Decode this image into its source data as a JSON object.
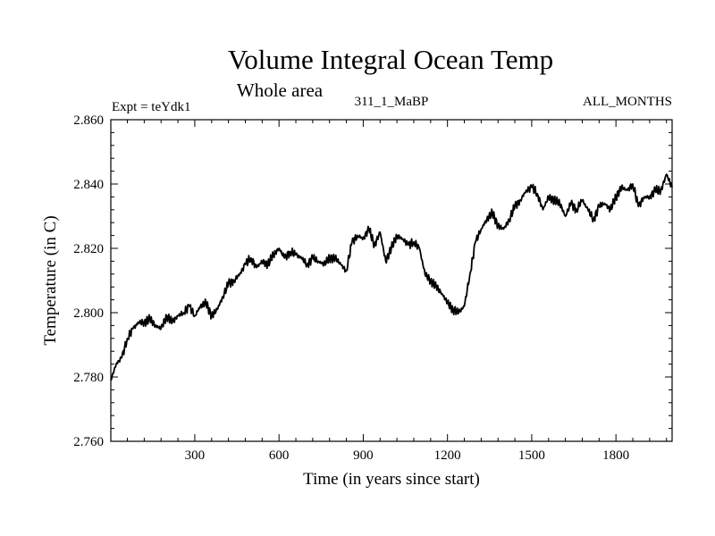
{
  "chart_data": {
    "type": "line",
    "title": "Volume Integral Ocean Temp",
    "subtitle": "Whole area",
    "left_label": "Expt = teYdk1",
    "center_label": "311_1_MaBP",
    "right_label": "ALL_MONTHS",
    "xlabel": "Time (in years since start)",
    "ylabel": "Temperature (in C)",
    "xlim": [
      1,
      2000
    ],
    "ylim": [
      2.76,
      2.86
    ],
    "x_ticks": [
      300,
      600,
      900,
      1200,
      1500,
      1800
    ],
    "x_tick_labels": [
      "300",
      "600",
      "900",
      "1200",
      "1500",
      "1800"
    ],
    "y_ticks": [
      2.76,
      2.78,
      2.8,
      2.82,
      2.84,
      2.86
    ],
    "y_tick_labels": [
      "2.760",
      "2.780",
      "2.800",
      "2.820",
      "2.840",
      "2.860"
    ],
    "grid": false,
    "line_color": "#000000",
    "series": [
      {
        "name": "Volume integral ocean temperature",
        "x": [
          1,
          20,
          40,
          60,
          80,
          100,
          120,
          140,
          160,
          180,
          200,
          220,
          240,
          260,
          280,
          300,
          320,
          340,
          360,
          380,
          400,
          420,
          440,
          460,
          480,
          500,
          520,
          540,
          560,
          580,
          600,
          620,
          640,
          660,
          680,
          700,
          720,
          740,
          760,
          780,
          800,
          820,
          840,
          860,
          880,
          900,
          920,
          940,
          960,
          980,
          1000,
          1020,
          1040,
          1060,
          1080,
          1100,
          1120,
          1140,
          1160,
          1180,
          1200,
          1220,
          1240,
          1260,
          1280,
          1300,
          1320,
          1340,
          1360,
          1380,
          1400,
          1420,
          1440,
          1460,
          1480,
          1500,
          1520,
          1540,
          1560,
          1580,
          1600,
          1620,
          1640,
          1660,
          1680,
          1700,
          1720,
          1740,
          1760,
          1780,
          1800,
          1820,
          1840,
          1860,
          1880,
          1900,
          1920,
          1940,
          1960,
          1980,
          2000
        ],
        "values": [
          2.779,
          2.784,
          2.786,
          2.792,
          2.795,
          2.797,
          2.797,
          2.798,
          2.796,
          2.795,
          2.799,
          2.797,
          2.799,
          2.8,
          2.802,
          2.799,
          2.802,
          2.803,
          2.799,
          2.801,
          2.805,
          2.809,
          2.81,
          2.812,
          2.815,
          2.817,
          2.814,
          2.816,
          2.815,
          2.818,
          2.82,
          2.817,
          2.819,
          2.818,
          2.817,
          2.815,
          2.817,
          2.816,
          2.815,
          2.817,
          2.817,
          2.815,
          2.813,
          2.822,
          2.824,
          2.823,
          2.826,
          2.821,
          2.825,
          2.816,
          2.82,
          2.824,
          2.823,
          2.821,
          2.822,
          2.82,
          2.812,
          2.81,
          2.808,
          2.806,
          2.803,
          2.801,
          2.8,
          2.802,
          2.812,
          2.822,
          2.826,
          2.829,
          2.831,
          2.827,
          2.826,
          2.829,
          2.833,
          2.835,
          2.838,
          2.839,
          2.837,
          2.832,
          2.836,
          2.835,
          2.834,
          2.83,
          2.834,
          2.832,
          2.835,
          2.832,
          2.829,
          2.833,
          2.834,
          2.832,
          2.836,
          2.839,
          2.838,
          2.84,
          2.833,
          2.836,
          2.836,
          2.838,
          2.838,
          2.843,
          2.839
        ]
      }
    ]
  }
}
